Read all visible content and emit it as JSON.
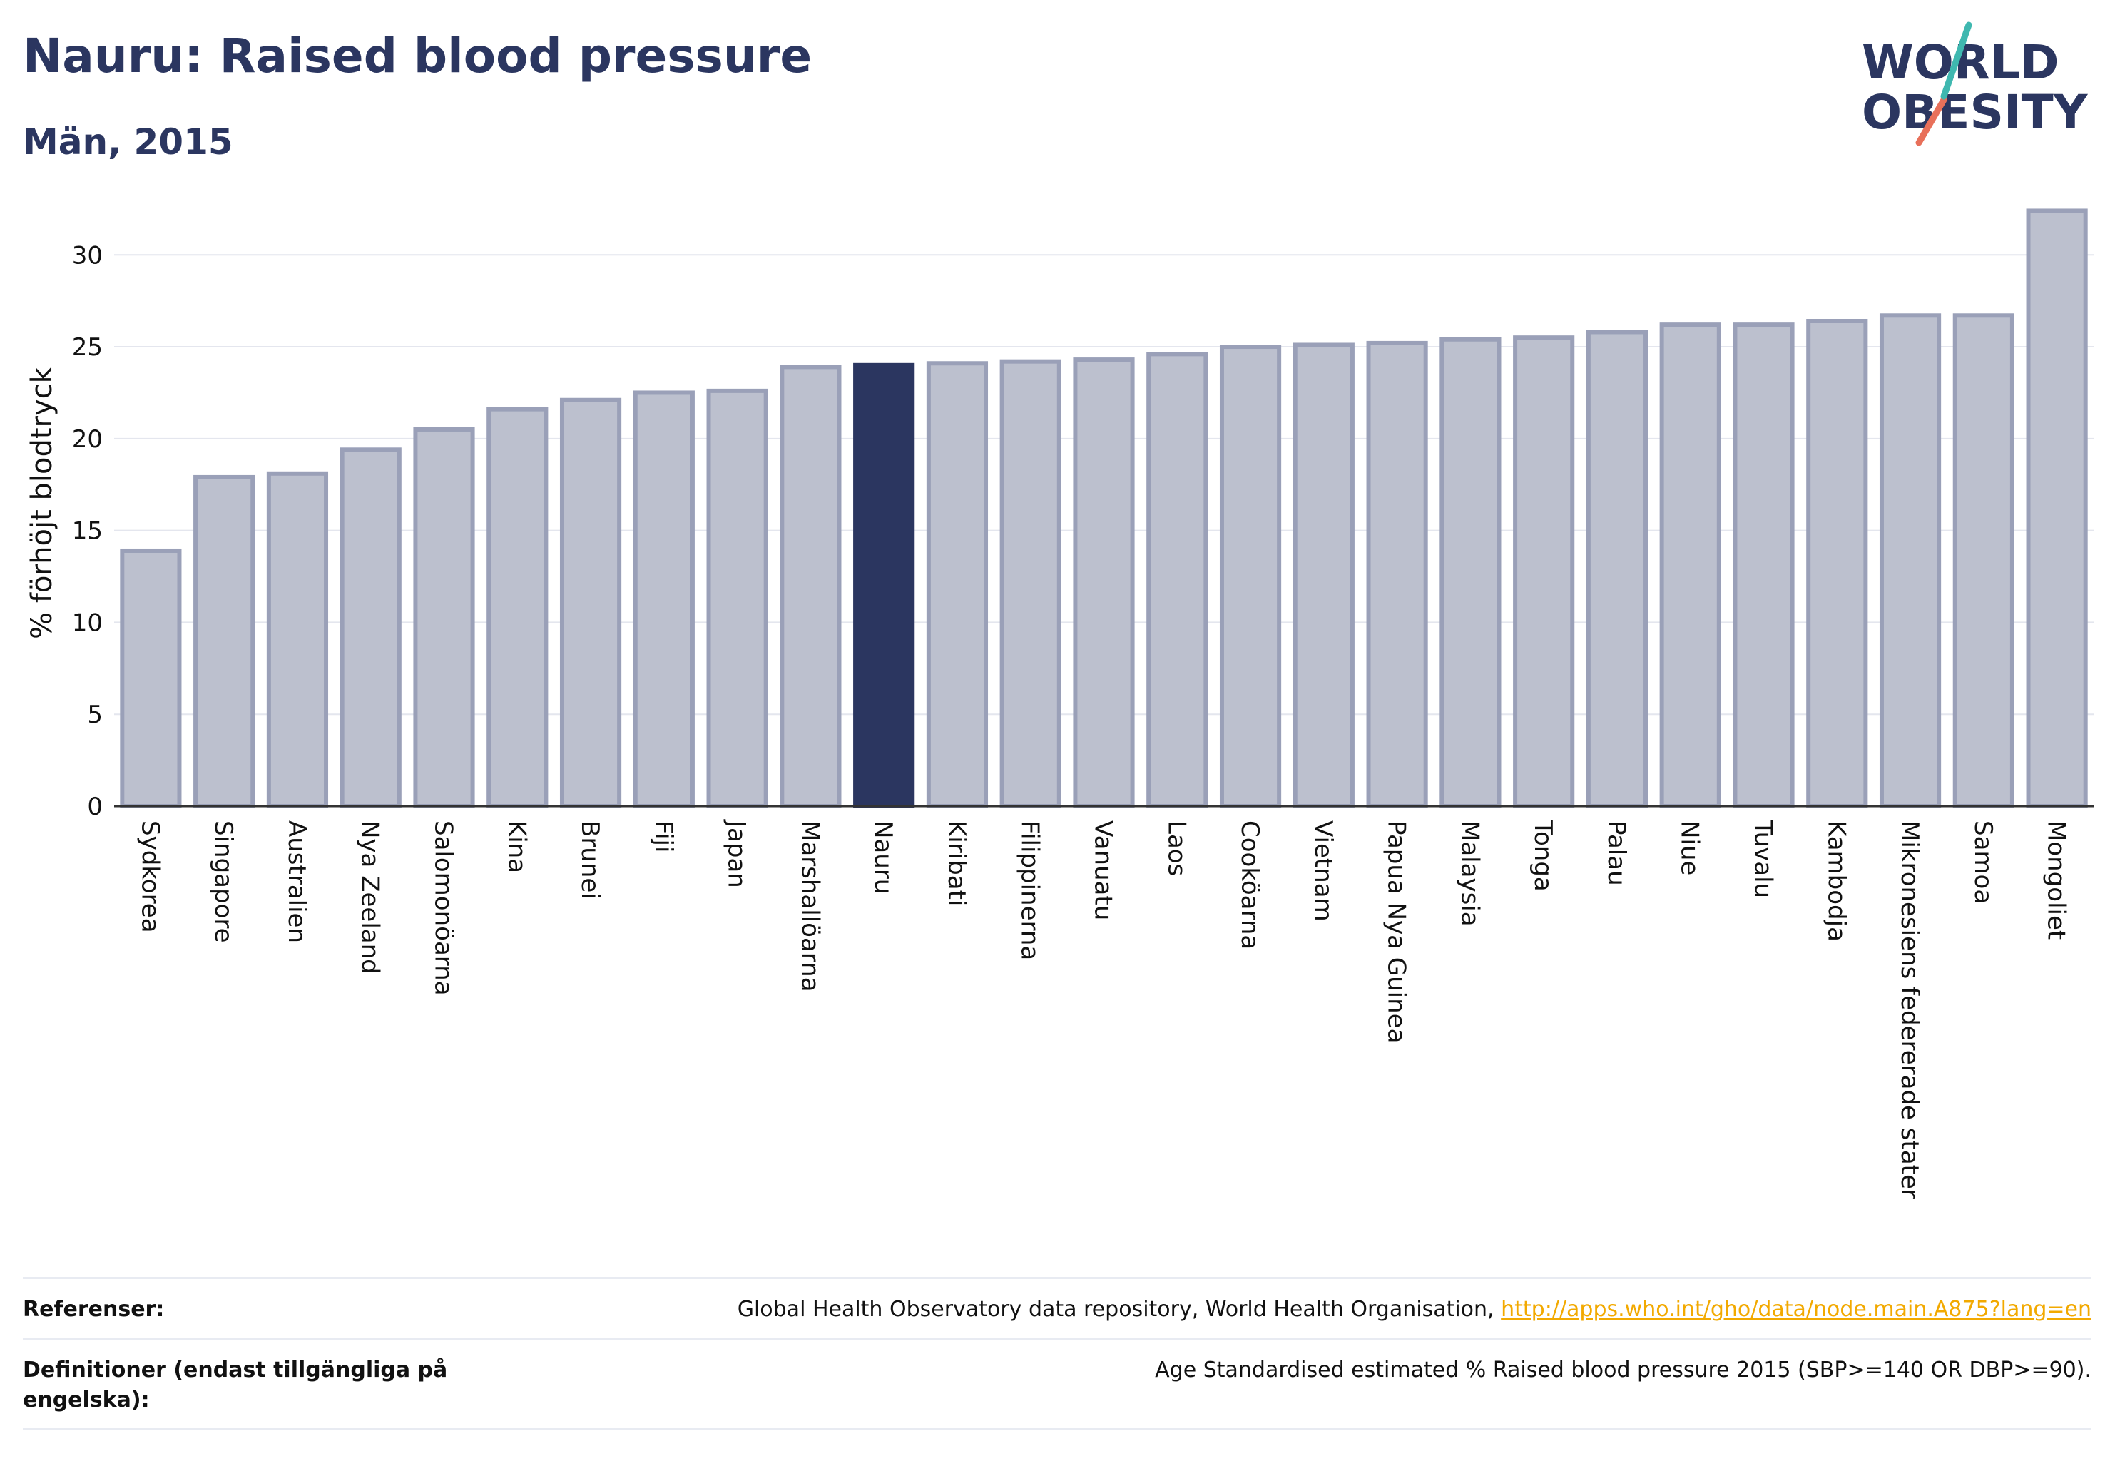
{
  "title": "Nauru: Raised blood pressure",
  "subtitle": "Män, 2015",
  "logo": {
    "line1": "WORLD",
    "line2": "OBESITY"
  },
  "colors": {
    "bar_default": "#bcc0ce",
    "bar_default_stroke": "#9aa0b8",
    "bar_highlight": "#2b3660",
    "text_dark": "#2b3660",
    "link": "#f2a900",
    "logo_teal": "#3fb8b0",
    "logo_red": "#e8705a"
  },
  "chart_data": {
    "type": "bar",
    "ylabel": "% förhöjt blodtryck",
    "xlabel": "",
    "ylim": [
      0,
      33
    ],
    "yticks": [
      0,
      5,
      10,
      15,
      20,
      25,
      30
    ],
    "grid": true,
    "highlight": "Nauru",
    "categories": [
      "Sydkorea",
      "Singapore",
      "Australien",
      "Nya Zeeland",
      "Salomonöarna",
      "Kina",
      "Brunei",
      "Fiji",
      "Japan",
      "Marshallöarna",
      "Nauru",
      "Kiribati",
      "Filippinerna",
      "Vanuatu",
      "Laos",
      "Cooköarna",
      "Vietnam",
      "Papua Nya Guinea",
      "Malaysia",
      "Tonga",
      "Palau",
      "Niue",
      "Tuvalu",
      "Kambodja",
      "Mikronesiens federerade stater",
      "Samoa",
      "Mongoliet"
    ],
    "values": [
      13.9,
      17.9,
      18.1,
      19.4,
      20.5,
      21.6,
      22.1,
      22.5,
      22.6,
      23.9,
      24.0,
      24.1,
      24.2,
      24.3,
      24.6,
      25.0,
      25.1,
      25.2,
      25.4,
      25.5,
      25.8,
      26.2,
      26.2,
      26.4,
      26.7,
      26.7,
      32.4
    ]
  },
  "references": {
    "ref_label": "Referenser:",
    "ref_text": "Global Health Observatory data repository, World Health Organisation,",
    "ref_link": "http://apps.who.int/gho/data/node.main.A875?lang=en",
    "def_label": "Definitioner (endast tillgängliga på engelska):",
    "def_text": "Age Standardised estimated % Raised blood pressure 2015 (SBP>=140 OR DBP>=90)."
  }
}
